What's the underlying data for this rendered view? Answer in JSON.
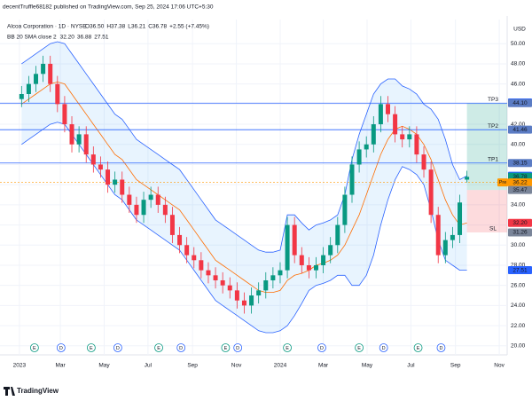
{
  "header": {
    "published": "decentTruffle68182 published on TradingView.com, Sep 25, 2024 17:06 UTC+5:30",
    "footer": "TradingView"
  },
  "chart_data": {
    "type": "candlestick",
    "symbol": "Alcoa Corporation · 1D · NYSE",
    "ohlc_legend": [
      "O36.50",
      "H37.38",
      "L36.21",
      "C36.78",
      "+2.55 (+7.45%)"
    ],
    "indicator": "BB 20 SMA close 2",
    "indicator_values": [
      "32.20",
      "36.88",
      "27.51"
    ],
    "currency": "USD",
    "x": [
      5,
      15,
      25,
      35,
      45,
      55,
      65,
      75,
      85,
      95,
      105,
      115,
      125,
      135,
      145,
      155,
      165,
      175,
      185,
      195,
      205,
      215,
      225,
      235,
      245,
      255,
      265,
      275,
      285,
      295,
      305,
      315,
      325,
      335,
      345,
      355,
      365,
      375,
      385,
      395,
      405,
      415,
      425,
      435,
      445,
      455,
      465,
      475,
      485,
      495,
      505,
      515,
      525,
      535,
      545,
      555,
      565,
      575,
      585,
      595,
      605,
      615,
      625
    ],
    "open": [
      44.5,
      45,
      46,
      47,
      48,
      46,
      44,
      42,
      40,
      41,
      39,
      38,
      37.5,
      36,
      36.5,
      35,
      34,
      33,
      34.5,
      35,
      34,
      33,
      31,
      30,
      29,
      28.5,
      27.5,
      27,
      26.5,
      26,
      25.5,
      24.5,
      24,
      25,
      25.5,
      26.5,
      27,
      27.5,
      32,
      29,
      28,
      27.5,
      28,
      29,
      30,
      32,
      35,
      38,
      39.5,
      40,
      42,
      44,
      43,
      41,
      40.5,
      41,
      39,
      37.5,
      33,
      29,
      30.5,
      31,
      36.5
    ],
    "high": [
      45.8,
      46.8,
      47.8,
      48.8,
      48.8,
      46.8,
      44.8,
      42.8,
      41.8,
      41.8,
      39.8,
      38.8,
      38.3,
      37.3,
      37.3,
      35.8,
      34.8,
      35.3,
      35.8,
      35.8,
      34.8,
      33.8,
      31.8,
      30.8,
      29.8,
      29.3,
      28.3,
      27.8,
      27.3,
      26.8,
      26.3,
      25.3,
      25.8,
      26.3,
      27.3,
      27.8,
      28.3,
      32.8,
      32.8,
      29.8,
      28.8,
      28.8,
      29.8,
      30.8,
      32.8,
      35.8,
      38.8,
      40.3,
      40.8,
      42.8,
      44.8,
      44.8,
      43.8,
      41.8,
      41.8,
      41.8,
      39.8,
      38.3,
      33.8,
      31.3,
      31.8,
      35,
      37.38
    ],
    "low": [
      43.7,
      44.2,
      45.2,
      46.2,
      45.2,
      43.2,
      41.2,
      39.2,
      39.2,
      38.2,
      37.2,
      36.7,
      35.2,
      35.2,
      34.2,
      33.2,
      32.2,
      32.2,
      33.7,
      33.2,
      32.2,
      30.2,
      29.2,
      28.2,
      27.7,
      26.7,
      26.2,
      25.7,
      25.2,
      24.7,
      23.7,
      23.2,
      23.2,
      24.2,
      24.7,
      25.7,
      26.2,
      26.7,
      28.2,
      27.2,
      26.7,
      26.7,
      27.2,
      28.2,
      29.2,
      31.2,
      34.2,
      37.2,
      38.7,
      39.2,
      41.2,
      42.2,
      40.2,
      39.7,
      39.7,
      38.2,
      36.7,
      32.2,
      28.2,
      28.2,
      29.7,
      30.2,
      36.21
    ],
    "close": [
      45,
      46,
      47,
      48,
      46,
      44,
      42,
      40,
      41,
      39,
      38,
      37.5,
      36,
      36.5,
      35,
      34,
      33,
      34.5,
      35,
      34,
      33,
      31,
      30,
      29,
      28.5,
      27.5,
      27,
      26.5,
      26,
      25.5,
      24.5,
      24,
      25,
      25.5,
      26.5,
      27,
      27.5,
      32,
      29,
      28,
      27.5,
      28,
      29,
      30,
      32,
      35,
      38,
      39.5,
      40,
      42,
      44,
      43,
      41,
      40.5,
      41,
      39,
      37.5,
      33,
      29,
      30.5,
      31,
      34.23,
      36.78
    ],
    "bb_basis": [
      44,
      44.5,
      45,
      45.5,
      46,
      46.2,
      46,
      45,
      44,
      43,
      42,
      41,
      40,
      39,
      38.5,
      37.5,
      36.5,
      36,
      35.5,
      35,
      34.5,
      34,
      33.5,
      32.5,
      31.5,
      30.5,
      29.5,
      28.5,
      28,
      27.5,
      27,
      26.5,
      26,
      25.5,
      25.3,
      25.3,
      25.5,
      26.5,
      27,
      27.2,
      27.5,
      28,
      28.2,
      28.5,
      29,
      30,
      31.5,
      33,
      35,
      37,
      39,
      40.5,
      41.5,
      41.8,
      41.5,
      41,
      40,
      38.5,
      36.5,
      34.5,
      33,
      32,
      32.2
    ],
    "bb_upper": [
      48,
      48.5,
      49,
      49.5,
      50,
      50.2,
      50,
      49,
      48,
      47,
      46,
      45,
      44,
      43,
      42.5,
      41.5,
      40.5,
      40,
      39.5,
      39,
      38.5,
      38,
      37.5,
      36.5,
      35.5,
      34.5,
      33.5,
      32.5,
      32,
      31.5,
      31,
      30.5,
      30,
      29.5,
      29.3,
      29.3,
      29.5,
      33,
      33,
      32.2,
      31.5,
      32,
      32.2,
      32.5,
      33,
      35,
      38.5,
      41,
      43,
      45,
      46,
      46.5,
      46.5,
      45.8,
      45.5,
      45,
      44,
      43.5,
      42.5,
      40.5,
      38,
      36.5,
      36.88
    ],
    "bb_lower": [
      40,
      40.5,
      41,
      41.5,
      42,
      42.2,
      42,
      41,
      40,
      39,
      38,
      37,
      36,
      35,
      34.5,
      33.5,
      32.5,
      32,
      31.5,
      31,
      30.5,
      30,
      29.5,
      28.5,
      27.5,
      26.5,
      25.5,
      24.5,
      24,
      23.5,
      23,
      22.5,
      22,
      21.5,
      21.3,
      21.3,
      21.5,
      22,
      23,
      24.2,
      25.5,
      26,
      26.2,
      26.5,
      27,
      27,
      26,
      26,
      27,
      29,
      32,
      34.5,
      36.5,
      37.8,
      37.5,
      37,
      36,
      33.5,
      30.5,
      28.5,
      28,
      27.5,
      27.51
    ],
    "xlim": [
      -25,
      681
    ],
    "ylim": [
      19.1,
      52.4
    ],
    "yticks": [
      {
        "value": 20,
        "label": "20.00"
      },
      {
        "value": 22,
        "label": "22.00"
      },
      {
        "value": 24,
        "label": "24.00"
      },
      {
        "value": 26,
        "label": "26.00"
      },
      {
        "value": 28,
        "label": "28.00"
      },
      {
        "value": 30,
        "label": "30.00"
      },
      {
        "value": 32,
        "label": "32.00"
      },
      {
        "value": 34,
        "label": "34.00"
      },
      {
        "value": 36,
        "label": "36.00"
      },
      {
        "value": 38,
        "label": "38.00"
      },
      {
        "value": 40,
        "label": "40.00"
      },
      {
        "value": 42,
        "label": "42.00"
      },
      {
        "value": 44,
        "label": "44.00"
      },
      {
        "value": 46,
        "label": "46.00"
      },
      {
        "value": 48,
        "label": "48.00"
      },
      {
        "value": 50,
        "label": "50.00"
      }
    ],
    "xticks": [
      {
        "value": 2,
        "label": "2023"
      },
      {
        "value": 59,
        "label": "Mar"
      },
      {
        "value": 120,
        "label": "May"
      },
      {
        "value": 181,
        "label": "Jul"
      },
      {
        "value": 243,
        "label": "Sep"
      },
      {
        "value": 304,
        "label": "Nov"
      },
      {
        "value": 365,
        "label": "2024"
      },
      {
        "value": 425,
        "label": "Mar"
      },
      {
        "value": 486,
        "label": "May"
      },
      {
        "value": 547,
        "label": "Jul"
      },
      {
        "value": 609,
        "label": "Sep"
      },
      {
        "value": 670,
        "label": "Nov"
      }
    ],
    "levels": [
      {
        "name": "TP3",
        "value": 44.1
      },
      {
        "name": "TP2",
        "value": 41.46
      },
      {
        "name": "TP1",
        "value": 38.15
      },
      {
        "name": "SL",
        "value": 31.26
      }
    ],
    "entry": 35.47,
    "position_start": 625,
    "price_labels": [
      {
        "value": 44.16,
        "label": "44.16",
        "color": "#2962ff"
      },
      {
        "value": 44.1,
        "label": "44.10",
        "color": "#5b7cc4"
      },
      {
        "value": 41.46,
        "label": "41.46",
        "color": "#5b7cc4"
      },
      {
        "value": 38.15,
        "label": "38.15",
        "color": "#5b7cc4"
      },
      {
        "value": 36.88,
        "label": "36.88",
        "color": "#2962ff"
      },
      {
        "value": 36.78,
        "label": "36.78",
        "color": "#089981"
      },
      {
        "value": 36.22,
        "label": "36.22",
        "color": "#ff9800"
      },
      {
        "value": 35.47,
        "label": "35.47",
        "color": "#7a8599"
      },
      {
        "value": 32.2,
        "label": "32.20",
        "color": "#f23645"
      },
      {
        "value": 31.26,
        "label": "31.26",
        "color": "#7a8599"
      },
      {
        "value": 27.51,
        "label": "27.51",
        "color": "#2962ff"
      }
    ],
    "pre_label": "Pre",
    "pre_value": 36.22,
    "events": [
      {
        "x": 23,
        "label": "E"
      },
      {
        "x": 60,
        "label": "D"
      },
      {
        "x": 102,
        "label": "E"
      },
      {
        "x": 139,
        "label": "D"
      },
      {
        "x": 196,
        "label": "E"
      },
      {
        "x": 227,
        "label": "D"
      },
      {
        "x": 289,
        "label": "E"
      },
      {
        "x": 306,
        "label": "D"
      },
      {
        "x": 375,
        "label": "E"
      },
      {
        "x": 423,
        "label": "D"
      },
      {
        "x": 475,
        "label": "E"
      },
      {
        "x": 509,
        "label": "D"
      },
      {
        "x": 557,
        "label": "E"
      },
      {
        "x": 589,
        "label": "D"
      }
    ]
  }
}
